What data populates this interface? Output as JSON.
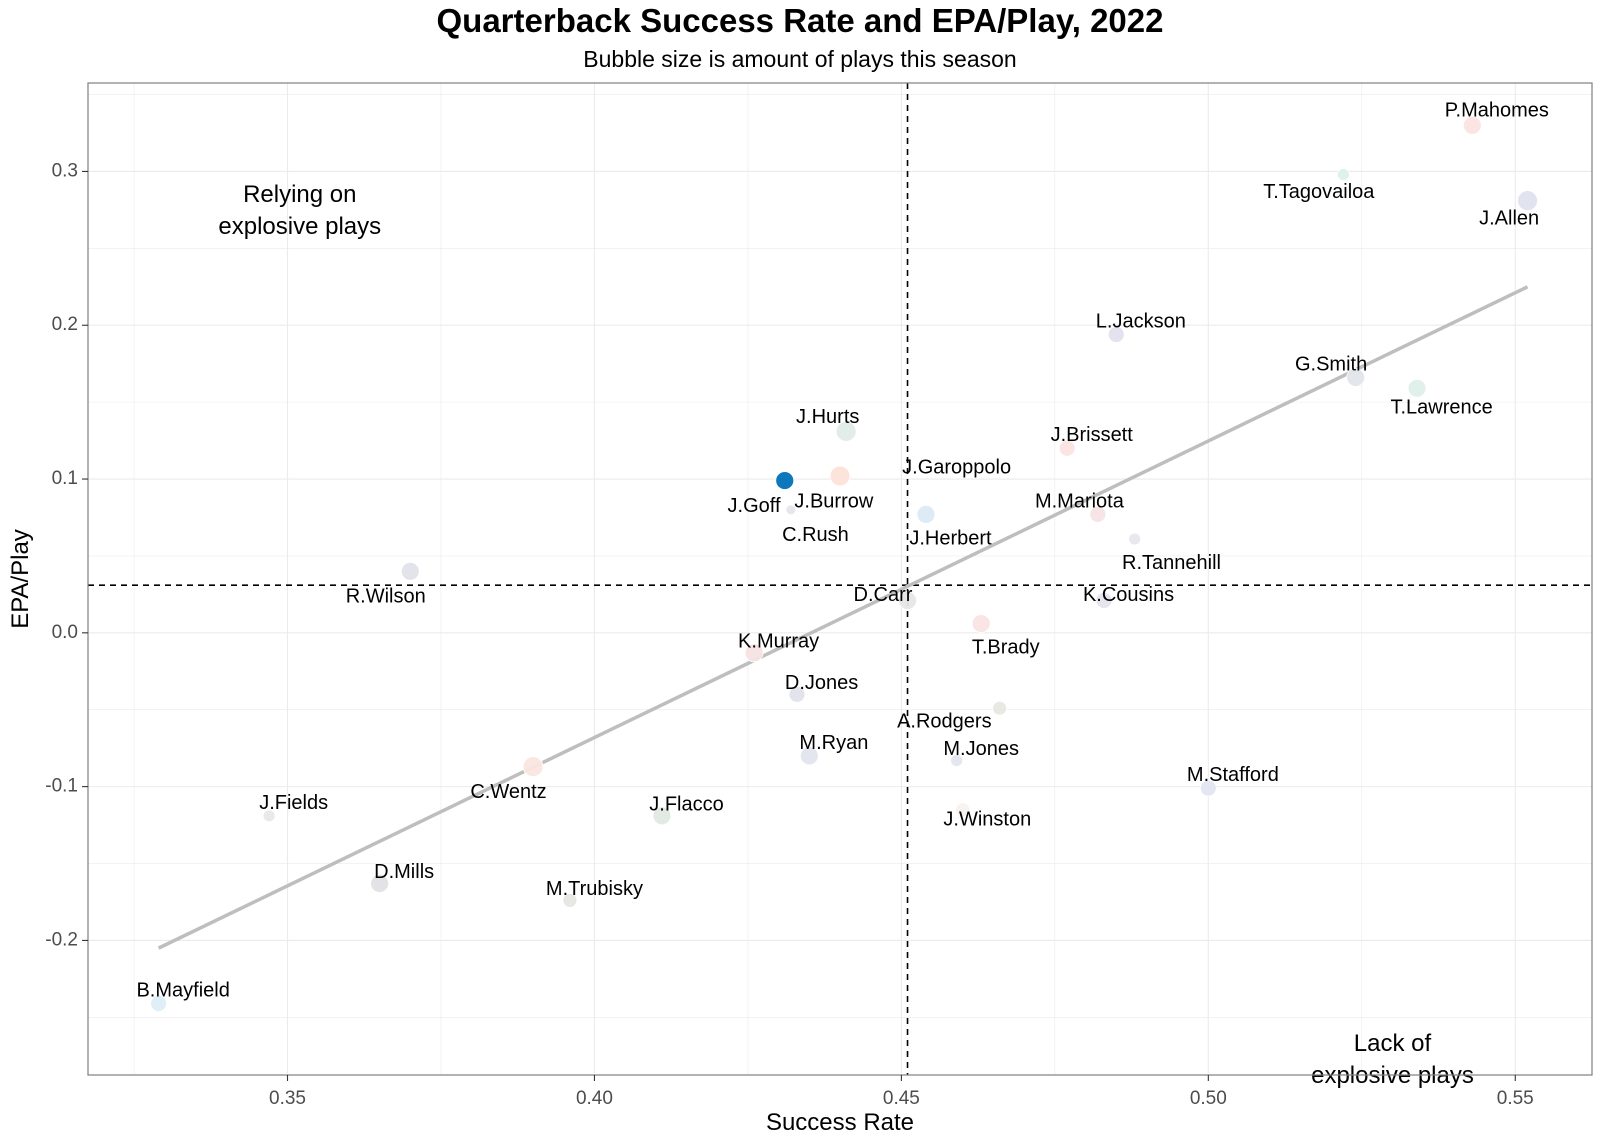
{
  "chart_data": {
    "type": "scatter",
    "title": "Quarterback Success Rate and EPA/Play, 2022",
    "subtitle": "Bubble size is amount of plays this season",
    "xlabel": "Success Rate",
    "ylabel": "EPA/Play",
    "xlim": [
      0.3175,
      0.5625
    ],
    "ylim": [
      -0.2875,
      0.3575
    ],
    "xticks": [
      0.35,
      0.4,
      0.45,
      0.5,
      0.55
    ],
    "xtick_labels": [
      "0.35",
      "0.40",
      "0.45",
      "0.50",
      "0.55"
    ],
    "yticks": [
      -0.2,
      -0.1,
      0.0,
      0.1,
      0.2,
      0.3
    ],
    "ytick_labels": [
      "-0.2",
      "-0.1",
      "0.0",
      "0.1",
      "0.2",
      "0.3"
    ],
    "grid": true,
    "reference_lines": {
      "x_mean": 0.451,
      "y_mean": 0.031
    },
    "trend_line": {
      "x": [
        0.329,
        0.552
      ],
      "y": [
        -0.205,
        0.225
      ]
    },
    "annotations": [
      {
        "text": [
          "Relying on",
          "explosive plays"
        ],
        "x": 0.352,
        "y": 0.28
      },
      {
        "text": [
          "Lack of",
          "explosive plays"
        ],
        "x": 0.53,
        "y": -0.272
      }
    ],
    "points": [
      {
        "label": "P.Mahomes",
        "x": 0.543,
        "y": 0.33,
        "size": 9,
        "color": "#fbe3df",
        "lx": 0.547,
        "ly": 0.339,
        "anchor": "middle"
      },
      {
        "label": "T.Tagovailoa",
        "x": 0.522,
        "y": 0.298,
        "size": 6,
        "color": "#ddf0ea",
        "lx": 0.518,
        "ly": 0.286,
        "anchor": "middle"
      },
      {
        "label": "J.Allen",
        "x": 0.552,
        "y": 0.281,
        "size": 10,
        "color": "#dfe3ee",
        "lx": 0.549,
        "ly": 0.269,
        "anchor": "middle"
      },
      {
        "label": "L.Jackson",
        "x": 0.485,
        "y": 0.194,
        "size": 8,
        "color": "#e2e2ee",
        "lx": 0.489,
        "ly": 0.202,
        "anchor": "middle"
      },
      {
        "label": "G.Smith",
        "x": 0.524,
        "y": 0.166,
        "size": 9,
        "color": "#e1e6ea",
        "lx": 0.52,
        "ly": 0.174,
        "anchor": "middle"
      },
      {
        "label": "T.Lawrence",
        "x": 0.534,
        "y": 0.159,
        "size": 9,
        "color": "#def0eb",
        "lx": 0.538,
        "ly": 0.146,
        "anchor": "middle"
      },
      {
        "label": "J.Hurts",
        "x": 0.441,
        "y": 0.131,
        "size": 10,
        "color": "#e0ecea",
        "lx": 0.438,
        "ly": 0.14,
        "anchor": "middle"
      },
      {
        "label": "J.Brissett",
        "x": 0.477,
        "y": 0.12,
        "size": 8,
        "color": "#fbe4e2",
        "lx": 0.481,
        "ly": 0.128,
        "anchor": "middle"
      },
      {
        "label": "J.Goff",
        "x": 0.431,
        "y": 0.099,
        "size": 9,
        "color": "#0072b8",
        "lx": 0.426,
        "ly": 0.082,
        "anchor": "middle"
      },
      {
        "label": "J.Burrow",
        "x": 0.44,
        "y": 0.102,
        "size": 10,
        "color": "#fde3d9",
        "lx": 0.439,
        "ly": 0.085,
        "anchor": "middle"
      },
      {
        "label": "J.Garoppolo",
        "x": 0.454,
        "y": 0.077,
        "size": 9,
        "color": "#dcebf6",
        "lx": 0.459,
        "ly": 0.107,
        "anchor": "middle"
      },
      {
        "label": "M.Mariota",
        "x": 0.482,
        "y": 0.077,
        "size": 8,
        "color": "#f5e3e6",
        "lx": 0.479,
        "ly": 0.085,
        "anchor": "middle"
      },
      {
        "label": "C.Rush",
        "x": 0.432,
        "y": 0.08,
        "size": 5,
        "color": "#e6e6ea",
        "lx": 0.436,
        "ly": 0.063,
        "anchor": "middle"
      },
      {
        "label": "J.Herbert",
        "x": 0.454,
        "y": 0.077,
        "size": 9,
        "color": "#dcebf6",
        "lx": 0.458,
        "ly": 0.061,
        "anchor": "middle"
      },
      {
        "label": "R.Tannehill",
        "x": 0.488,
        "y": 0.061,
        "size": 6,
        "color": "#e6e8ee",
        "lx": 0.494,
        "ly": 0.045,
        "anchor": "middle"
      },
      {
        "label": "R.Wilson",
        "x": 0.37,
        "y": 0.04,
        "size": 9,
        "color": "#e1e1ea",
        "lx": 0.366,
        "ly": 0.023,
        "anchor": "middle"
      },
      {
        "label": "D.Carr",
        "x": 0.451,
        "y": 0.021,
        "size": 9,
        "color": "#e6e6e6",
        "lx": 0.447,
        "ly": 0.024,
        "anchor": "middle"
      },
      {
        "label": "K.Cousins",
        "x": 0.483,
        "y": 0.021,
        "size": 8,
        "color": "#e6e2ee",
        "lx": 0.487,
        "ly": 0.024,
        "anchor": "middle"
      },
      {
        "label": "T.Brady",
        "x": 0.463,
        "y": 0.006,
        "size": 9,
        "color": "#fbe3e3",
        "lx": 0.467,
        "ly": -0.01,
        "anchor": "middle"
      },
      {
        "label": "K.Murray",
        "x": 0.426,
        "y": -0.013,
        "size": 9,
        "color": "#f5e1e1",
        "lx": 0.43,
        "ly": -0.006,
        "anchor": "middle"
      },
      {
        "label": "D.Jones",
        "x": 0.433,
        "y": -0.04,
        "size": 8,
        "color": "#e2e2ea",
        "lx": 0.437,
        "ly": -0.033,
        "anchor": "middle"
      },
      {
        "label": "A.Rodgers",
        "x": 0.466,
        "y": -0.049,
        "size": 7,
        "color": "#e8e8e2",
        "lx": 0.457,
        "ly": -0.058,
        "anchor": "middle"
      },
      {
        "label": "M.Jones",
        "x": 0.459,
        "y": -0.083,
        "size": 6,
        "color": "#e4e6ee",
        "lx": 0.463,
        "ly": -0.076,
        "anchor": "middle"
      },
      {
        "label": "M.Ryan",
        "x": 0.435,
        "y": -0.08,
        "size": 9,
        "color": "#e2e4ee",
        "lx": 0.439,
        "ly": -0.072,
        "anchor": "middle"
      },
      {
        "label": "C.Wentz",
        "x": 0.39,
        "y": -0.087,
        "size": 10,
        "color": "#fbe6e0",
        "lx": 0.386,
        "ly": -0.104,
        "anchor": "middle"
      },
      {
        "label": "M.Stafford",
        "x": 0.5,
        "y": -0.101,
        "size": 8,
        "color": "#e0e6f2",
        "lx": 0.504,
        "ly": -0.093,
        "anchor": "middle"
      },
      {
        "label": "J.Winston",
        "x": 0.46,
        "y": -0.115,
        "size": 7,
        "color": "#f9f2ee",
        "lx": 0.464,
        "ly": -0.122,
        "anchor": "middle"
      },
      {
        "label": "J.Fields",
        "x": 0.347,
        "y": -0.119,
        "size": 6,
        "color": "#e8e8e6",
        "lx": 0.351,
        "ly": -0.111,
        "anchor": "middle"
      },
      {
        "label": "J.Flacco",
        "x": 0.411,
        "y": -0.119,
        "size": 9,
        "color": "#e2e8e2",
        "lx": 0.415,
        "ly": -0.112,
        "anchor": "middle"
      },
      {
        "label": "D.Mills",
        "x": 0.365,
        "y": -0.163,
        "size": 9,
        "color": "#e2e2e6",
        "lx": 0.369,
        "ly": -0.156,
        "anchor": "middle"
      },
      {
        "label": "M.Trubisky",
        "x": 0.396,
        "y": -0.174,
        "size": 7,
        "color": "#e6e6e2",
        "lx": 0.4,
        "ly": -0.167,
        "anchor": "middle"
      },
      {
        "label": "B.Mayfield",
        "x": 0.329,
        "y": -0.241,
        "size": 8,
        "color": "#ddeef8",
        "lx": 0.333,
        "ly": -0.233,
        "anchor": "middle"
      }
    ]
  }
}
